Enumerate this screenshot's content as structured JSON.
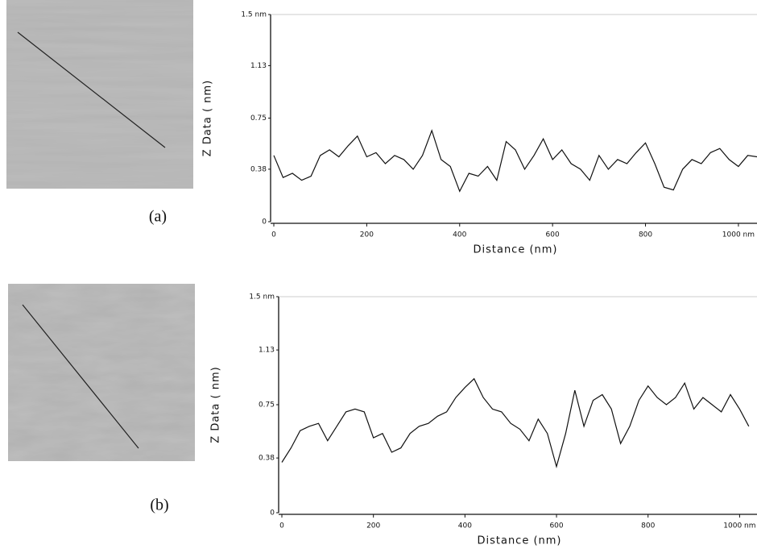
{
  "chart_data": [
    {
      "type": "line",
      "label": "(a)",
      "xlabel": "Distance (nm)",
      "ylabel": "Z Data ( nm)",
      "color": "#111111",
      "xlim": [
        0,
        1040
      ],
      "ylim": [
        0,
        1.5
      ],
      "xticks": [
        0,
        200,
        400,
        600,
        800,
        {
          "value": 1000,
          "label": "1000 nm"
        }
      ],
      "yticks": [
        0,
        0.38,
        0.75,
        1.13,
        {
          "value": 1.5,
          "label": "1.5 nm"
        }
      ],
      "x": [
        0,
        20,
        40,
        60,
        80,
        100,
        120,
        140,
        160,
        180,
        200,
        220,
        240,
        260,
        280,
        300,
        320,
        340,
        360,
        380,
        400,
        420,
        440,
        460,
        480,
        500,
        520,
        540,
        560,
        580,
        600,
        620,
        640,
        660,
        680,
        700,
        720,
        740,
        760,
        780,
        800,
        820,
        840,
        860,
        880,
        900,
        920,
        940,
        960,
        980,
        1000,
        1020,
        1040
      ],
      "values": [
        0.48,
        0.32,
        0.35,
        0.3,
        0.33,
        0.48,
        0.52,
        0.47,
        0.55,
        0.62,
        0.47,
        0.5,
        0.42,
        0.48,
        0.45,
        0.38,
        0.48,
        0.66,
        0.45,
        0.4,
        0.22,
        0.35,
        0.33,
        0.4,
        0.3,
        0.58,
        0.52,
        0.38,
        0.48,
        0.6,
        0.45,
        0.52,
        0.42,
        0.38,
        0.3,
        0.48,
        0.38,
        0.45,
        0.42,
        0.5,
        0.57,
        0.42,
        0.25,
        0.23,
        0.38,
        0.45,
        0.42,
        0.5,
        0.53,
        0.45,
        0.4,
        0.48,
        0.47
      ]
    },
    {
      "type": "line",
      "label": "(b)",
      "xlabel": "Distance (nm)",
      "ylabel": "Z Data ( nm)",
      "color": "#111111",
      "xlim": [
        0,
        1038
      ],
      "ylim": [
        0,
        1.5
      ],
      "xticks": [
        0,
        200,
        400,
        600,
        800,
        {
          "value": 1000,
          "label": "1000 nm"
        }
      ],
      "yticks": [
        0,
        0.38,
        0.75,
        1.13,
        {
          "value": 1.5,
          "label": "1.5 nm"
        }
      ],
      "x": [
        0,
        20,
        40,
        60,
        80,
        100,
        120,
        140,
        160,
        180,
        200,
        220,
        240,
        260,
        280,
        300,
        320,
        340,
        360,
        380,
        400,
        420,
        440,
        460,
        480,
        500,
        520,
        540,
        560,
        580,
        600,
        620,
        640,
        660,
        680,
        700,
        720,
        740,
        760,
        780,
        800,
        820,
        840,
        860,
        880,
        900,
        920,
        940,
        960,
        980,
        1000,
        1020
      ],
      "values": [
        0.35,
        0.45,
        0.57,
        0.6,
        0.62,
        0.5,
        0.6,
        0.7,
        0.72,
        0.7,
        0.52,
        0.55,
        0.42,
        0.45,
        0.55,
        0.6,
        0.62,
        0.67,
        0.7,
        0.8,
        0.87,
        0.93,
        0.8,
        0.72,
        0.7,
        0.62,
        0.58,
        0.5,
        0.65,
        0.55,
        0.32,
        0.55,
        0.85,
        0.6,
        0.78,
        0.82,
        0.72,
        0.48,
        0.6,
        0.78,
        0.88,
        0.8,
        0.75,
        0.8,
        0.9,
        0.72,
        0.8,
        0.75,
        0.7,
        0.82,
        0.72,
        0.6
      ]
    }
  ]
}
